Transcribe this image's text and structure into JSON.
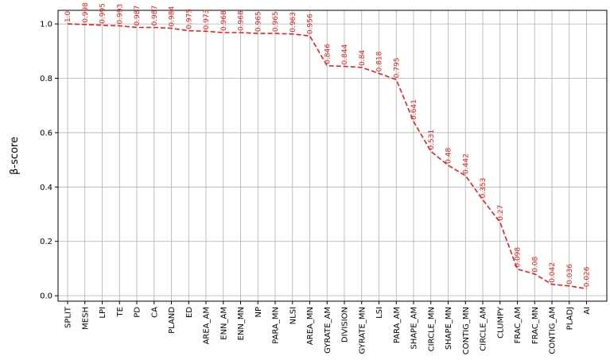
{
  "chart_data": {
    "type": "line",
    "title": "",
    "xlabel": "",
    "ylabel": "β-score",
    "ylim": [
      -0.02,
      1.05
    ],
    "yticks": [
      0.0,
      0.2,
      0.4,
      0.6,
      0.8,
      1.0
    ],
    "ytick_labels": [
      "0.0",
      "0.2",
      "0.4",
      "0.6",
      "0.8",
      "1.0"
    ],
    "grid": true,
    "line_style": "dashed",
    "line_color": "#e8201c",
    "categories": [
      "SPLIT",
      "MESH",
      "LPI",
      "TE",
      "PD",
      "CA",
      "PLAND",
      "ED",
      "AREA_AM",
      "ENN_AM",
      "ENN_MN",
      "NP",
      "PARA_MN",
      "NLSI",
      "AREA_MN",
      "GYRATE_AM",
      "DIVISION",
      "GYRATE_MN",
      "LSI",
      "PARA_AM",
      "SHAPE_AM",
      "CIRCLE_MN",
      "SHAPE_MN",
      "CONTIG_MN",
      "CIRCLE_AM",
      "CLUMPY",
      "FRAC_AM",
      "FRAC_MN",
      "CONTIG_AM",
      "PLADJ",
      "AI"
    ],
    "values": [
      1.0,
      0.998,
      0.995,
      0.993,
      0.987,
      0.987,
      0.984,
      0.975,
      0.973,
      0.968,
      0.968,
      0.965,
      0.965,
      0.963,
      0.956,
      0.846,
      0.844,
      0.84,
      0.818,
      0.795,
      0.641,
      0.531,
      0.48,
      0.442,
      0.353,
      0.27,
      0.098,
      0.08,
      0.042,
      0.036,
      0.026
    ],
    "value_labels": [
      "1.0",
      "0.998",
      "0.995",
      "0.993",
      "0.987",
      "0.987",
      "0.984",
      "0.975",
      "0.973",
      "0.968",
      "0.968",
      "0.965",
      "0.965",
      "0.963",
      "0.956",
      "0.846",
      "0.844",
      "0.84",
      "0.818",
      "0.795",
      "0.641",
      "0.531",
      "0.48",
      "0.442",
      "0.353",
      "0.27",
      "0.098",
      "0.08",
      "0.042",
      "0.036",
      "0.026"
    ]
  }
}
